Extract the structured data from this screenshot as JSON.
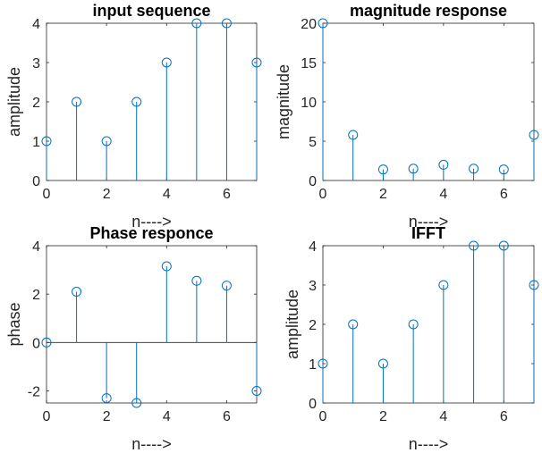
{
  "chart_data": [
    {
      "type": "stem",
      "title": "input sequence",
      "xlabel": "n---->",
      "ylabel": "amplitude",
      "xlim": [
        0,
        7
      ],
      "ylim": [
        0,
        4
      ],
      "xticks": [
        0,
        2,
        4,
        6
      ],
      "yticks": [
        0,
        1,
        2,
        3,
        4
      ],
      "x": [
        0,
        1,
        2,
        3,
        4,
        5,
        6,
        7
      ],
      "y": [
        1,
        2,
        1,
        2,
        3,
        4,
        4,
        3
      ],
      "grid": false,
      "color": "#0072BD"
    },
    {
      "type": "stem",
      "title": "magnitude response",
      "xlabel": "n---->",
      "ylabel": "magnitude",
      "xlim": [
        0,
        7
      ],
      "ylim": [
        0,
        20
      ],
      "xticks": [
        0,
        2,
        4,
        6
      ],
      "yticks": [
        0,
        5,
        10,
        15,
        20
      ],
      "x": [
        0,
        1,
        2,
        3,
        4,
        5,
        6,
        7
      ],
      "y": [
        20,
        5.8,
        1.4,
        1.5,
        2.0,
        1.5,
        1.4,
        5.8
      ],
      "grid": false,
      "color": "#0072BD"
    },
    {
      "type": "stem",
      "title": "Phase responce",
      "xlabel": "n---->",
      "ylabel": "phase",
      "xlim": [
        0,
        7
      ],
      "ylim": [
        -2.5,
        4
      ],
      "xticks": [
        0,
        2,
        4,
        6
      ],
      "yticks": [
        -2,
        0,
        2,
        4
      ],
      "x": [
        0,
        1,
        2,
        3,
        4,
        5,
        6,
        7
      ],
      "y": [
        0,
        2.1,
        -2.3,
        -2.5,
        3.15,
        2.55,
        2.35,
        -2.0
      ],
      "grid": false,
      "color": "#0072BD"
    },
    {
      "type": "stem",
      "title": "IFFT",
      "xlabel": "n---->",
      "ylabel": "amplitude",
      "xlim": [
        0,
        7
      ],
      "ylim": [
        0,
        4
      ],
      "xticks": [
        0,
        2,
        4,
        6
      ],
      "yticks": [
        0,
        1,
        2,
        3,
        4
      ],
      "x": [
        0,
        1,
        2,
        3,
        4,
        5,
        6,
        7
      ],
      "y": [
        1,
        2,
        1,
        2,
        3,
        4,
        4,
        3
      ],
      "grid": false,
      "color": "#0072BD"
    }
  ]
}
